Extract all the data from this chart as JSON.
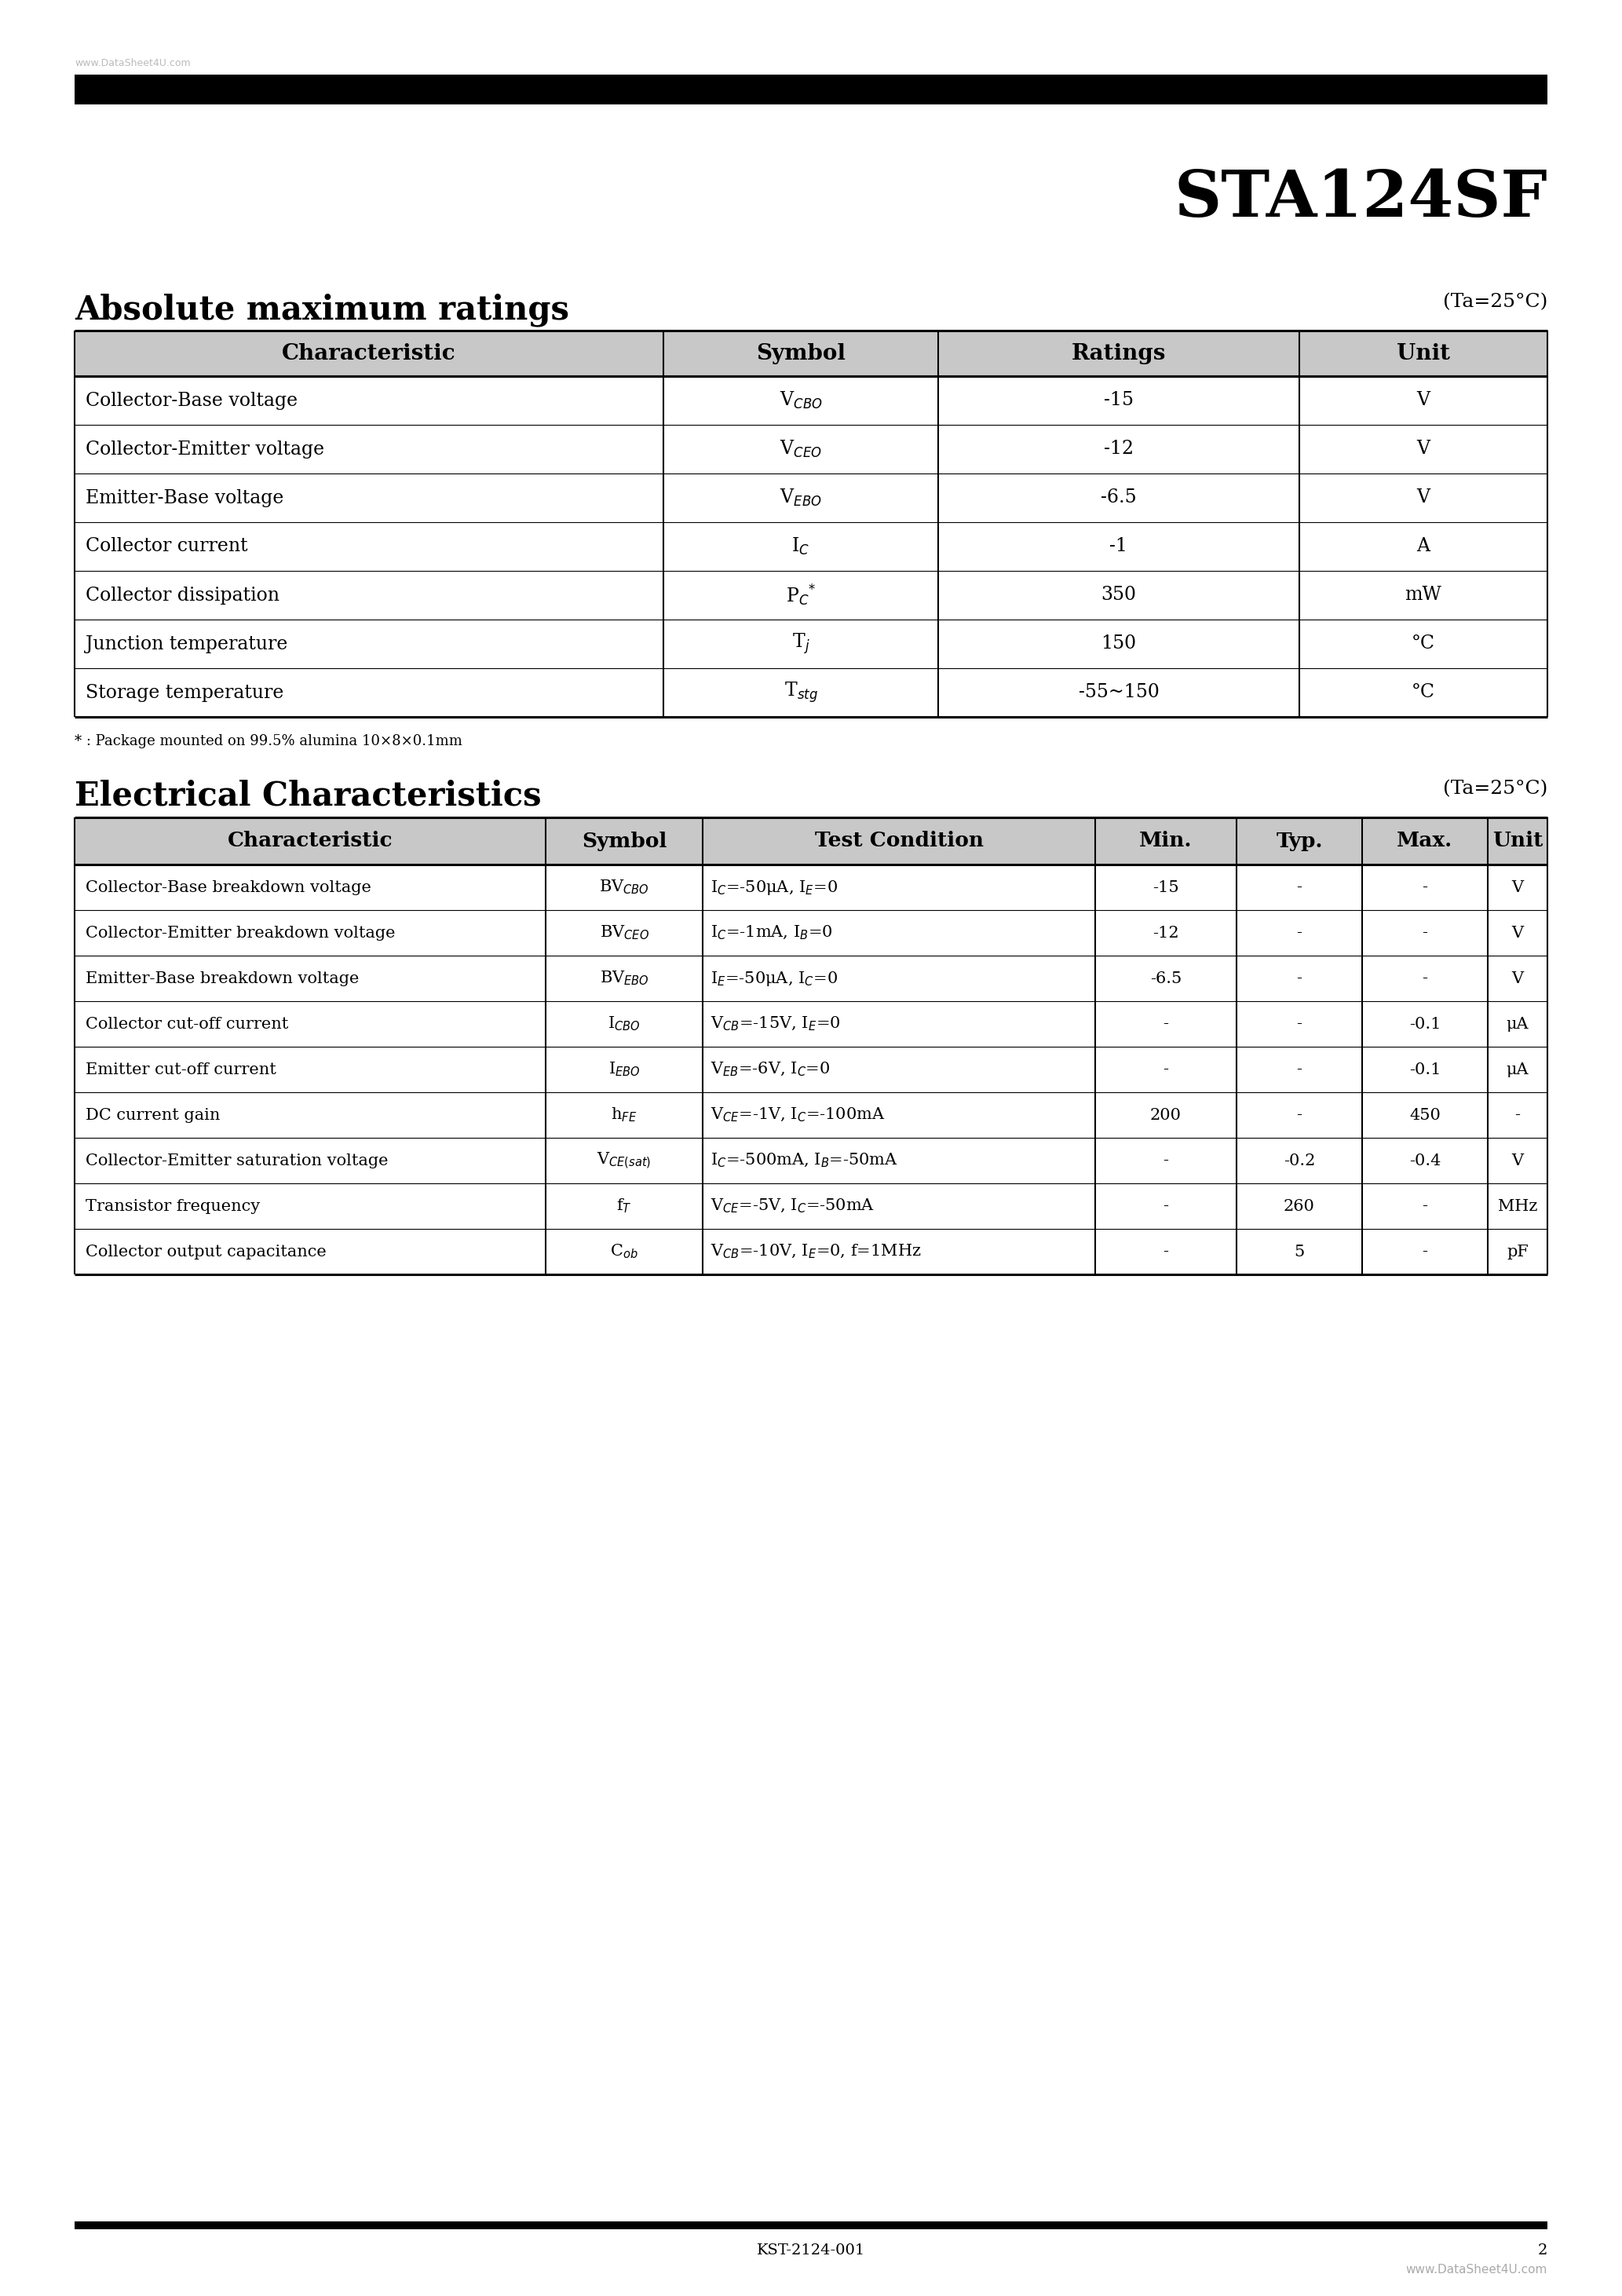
{
  "title": "STA124SF",
  "watermark_top": "www.DataSheet4U.com",
  "section1_title": "Absolute maximum ratings",
  "section1_ta": "(Ta=25°C)",
  "section1_headers": [
    "Characteristic",
    "Symbol",
    "Ratings",
    "Unit"
  ],
  "section1_rows": [
    [
      "Collector-Base voltage",
      "V$_{CBO}$",
      "-15",
      "V"
    ],
    [
      "Collector-Emitter voltage",
      "V$_{CEO}$",
      "-12",
      "V"
    ],
    [
      "Emitter-Base voltage",
      "V$_{EBO}$",
      "-6.5",
      "V"
    ],
    [
      "Collector current",
      "I$_{C}$",
      "-1",
      "A"
    ],
    [
      "Collector dissipation",
      "P$_{C}$$^{*}$",
      "350",
      "mW"
    ],
    [
      "Junction temperature",
      "T$_{j}$",
      "150",
      "°C"
    ],
    [
      "Storage temperature",
      "T$_{stg}$",
      "-55~150",
      "°C"
    ]
  ],
  "footnote": "* : Package mounted on 99.5% alumina 10×8×0.1mm",
  "section2_title": "Electrical Characteristics",
  "section2_ta": "(Ta=25°C)",
  "section2_headers": [
    "Characteristic",
    "Symbol",
    "Test Condition",
    "Min.",
    "Typ.",
    "Max.",
    "Unit"
  ],
  "section2_rows": [
    [
      "Collector-Base breakdown voltage",
      "BV$_{CBO}$",
      "I$_{C}$=-50μA, I$_{E}$=0",
      "-15",
      "-",
      "-",
      "V"
    ],
    [
      "Collector-Emitter breakdown voltage",
      "BV$_{CEO}$",
      "I$_{C}$=-1mA, I$_{B}$=0",
      "-12",
      "-",
      "-",
      "V"
    ],
    [
      "Emitter-Base breakdown voltage",
      "BV$_{EBO}$",
      "I$_{E}$=-50μA, I$_{C}$=0",
      "-6.5",
      "-",
      "-",
      "V"
    ],
    [
      "Collector cut-off current",
      "I$_{CBO}$",
      "V$_{CB}$=-15V, I$_{E}$=0",
      "-",
      "-",
      "-0.1",
      "μA"
    ],
    [
      "Emitter cut-off current",
      "I$_{EBO}$",
      "V$_{EB}$=-6V, I$_{C}$=0",
      "-",
      "-",
      "-0.1",
      "μA"
    ],
    [
      "DC current gain",
      "h$_{FE}$",
      "V$_{CE}$=-1V, I$_{C}$=-100mA",
      "200",
      "-",
      "450",
      "-"
    ],
    [
      "Collector-Emitter saturation voltage",
      "V$_{CE(sat)}$",
      "I$_{C}$=-500mA, I$_{B}$=-50mA",
      "-",
      "-0.2",
      "-0.4",
      "V"
    ],
    [
      "Transistor frequency",
      "f$_{T}$",
      "V$_{CE}$=-5V, I$_{C}$=-50mA",
      "-",
      "260",
      "-",
      "MHz"
    ],
    [
      "Collector output capacitance",
      "C$_{ob}$",
      "V$_{CB}$=-10V, I$_{E}$=0, f=1MHz",
      "-",
      "5",
      "-",
      "pF"
    ]
  ],
  "footer_center": "KST-2124-001",
  "footer_right_num": "2",
  "footer_watermark": "www.DataSheet4U.com",
  "bg_color": "#ffffff",
  "header_bg": "#c8c8c8",
  "line_color": "#000000",
  "top_bar_color": "#000000",
  "bottom_bar_color": "#000000"
}
